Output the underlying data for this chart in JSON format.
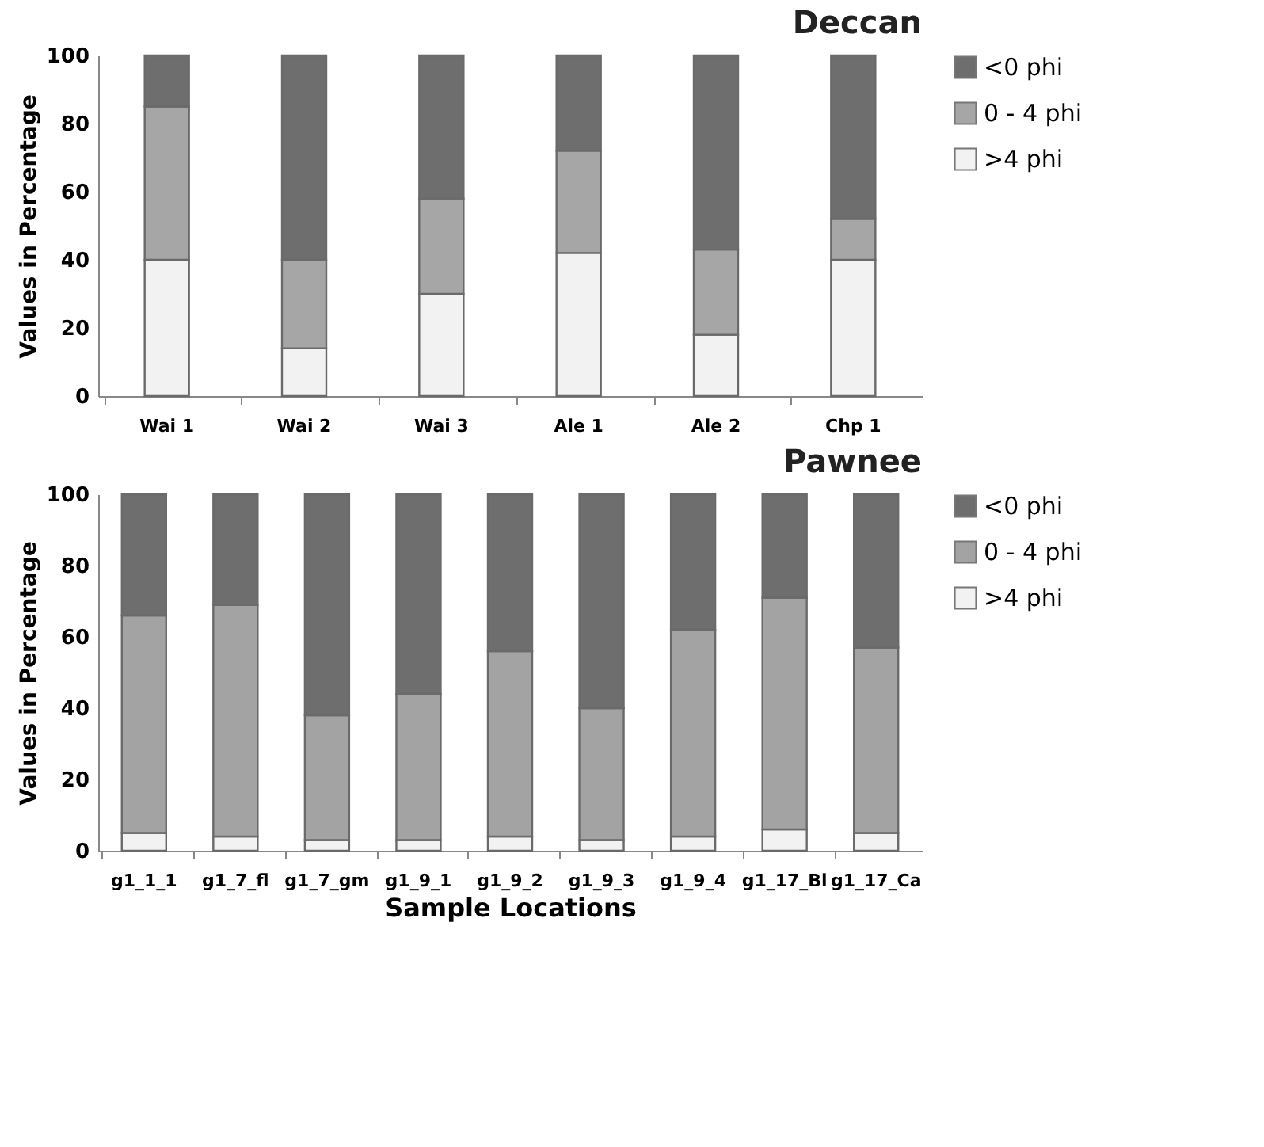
{
  "chart_data": [
    {
      "type": "bar",
      "stacked": true,
      "title": "Deccan",
      "ylabel": "Values in Percentage",
      "categories": [
        "Wai 1",
        "Wai 2",
        "Wai 3",
        "Ale 1",
        "Ale 2",
        "Chp 1"
      ],
      "series": [
        {
          "name": ">4 phi",
          "color": "#f2f2f2",
          "values": [
            40,
            14,
            30,
            42,
            18,
            40
          ]
        },
        {
          "name": "0 - 4 phi",
          "color": "#a6a6a6",
          "values": [
            45,
            26,
            28,
            30,
            25,
            12
          ]
        },
        {
          "name": "<0 phi",
          "color": "#6e6e6e",
          "values": [
            15,
            60,
            42,
            28,
            57,
            48
          ]
        }
      ],
      "ylim": [
        0,
        100
      ],
      "yticks": [
        0,
        20,
        40,
        60,
        80,
        100
      ],
      "grid": false,
      "legend": "right"
    },
    {
      "type": "bar",
      "stacked": true,
      "title": "Pawnee",
      "xlabel": "Sample Locations",
      "ylabel": "Values in Percentage",
      "categories": [
        "g1_1_1",
        "g1_7_fl",
        "g1_7_gm",
        "g1_9_1",
        "g1_9_2",
        "g1_9_3",
        "g1_9_4",
        "g1_17_Bl",
        "g1_17_Ca"
      ],
      "series": [
        {
          "name": ">4 phi",
          "color": "#f2f2f2",
          "values": [
            5,
            4,
            3,
            3,
            4,
            3,
            4,
            6,
            5
          ]
        },
        {
          "name": "0 - 4 phi",
          "color": "#a3a3a3",
          "values": [
            61,
            65,
            35,
            41,
            52,
            37,
            58,
            65,
            52
          ]
        },
        {
          "name": "<0 phi",
          "color": "#6e6e6e",
          "values": [
            34,
            31,
            62,
            56,
            44,
            60,
            38,
            29,
            43
          ]
        }
      ],
      "ylim": [
        0,
        100
      ],
      "yticks": [
        0,
        20,
        40,
        60,
        80,
        100
      ],
      "grid": false,
      "legend": "right"
    }
  ]
}
